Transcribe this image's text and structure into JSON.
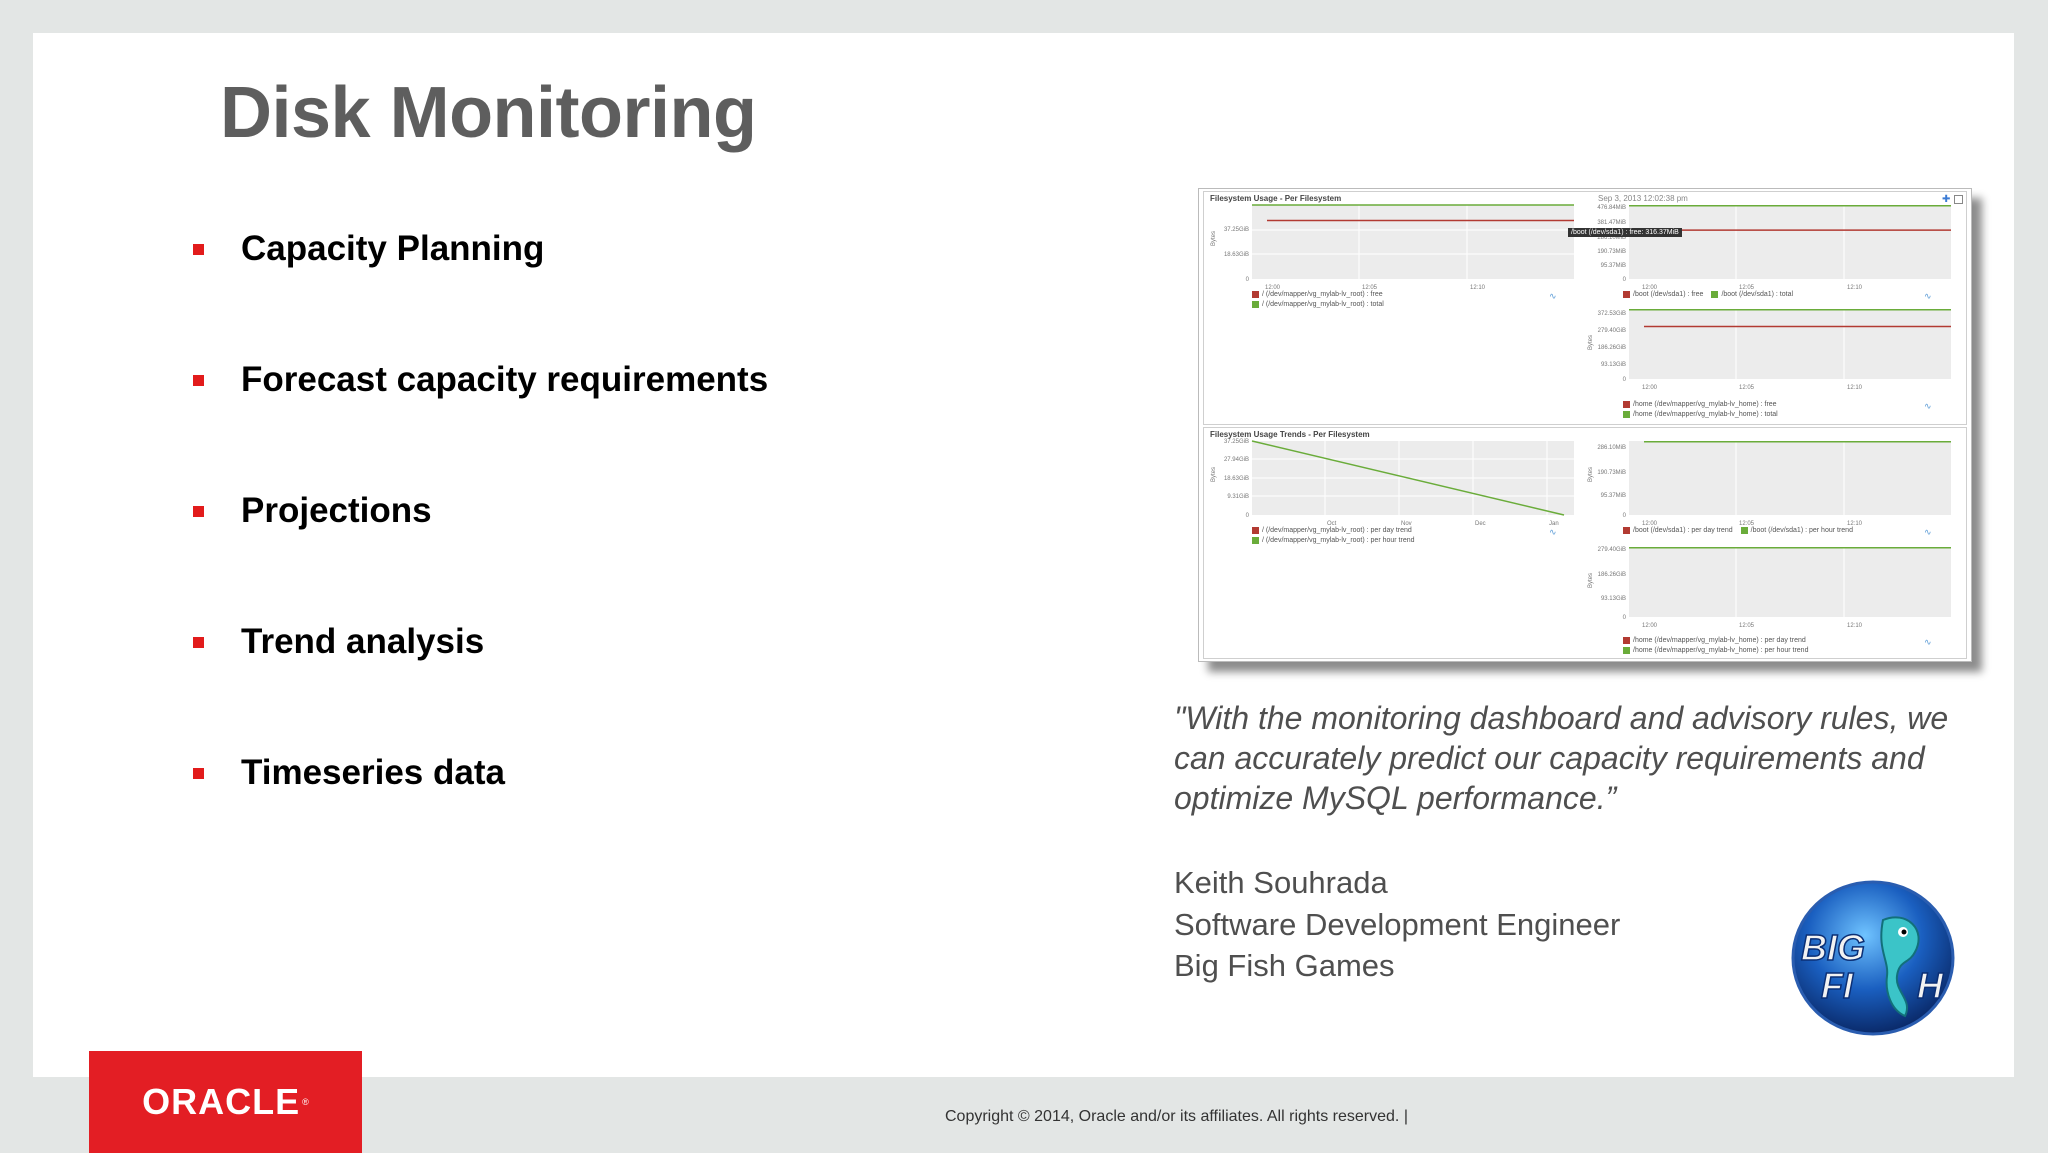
{
  "slide": {
    "title": "Disk Monitoring",
    "bullets": [
      "Capacity Planning",
      "Forecast capacity requirements",
      "Projections",
      "Trend analysis",
      "Timeseries data"
    ],
    "quote": "\"With the monitoring dashboard and advisory rules, we can accurately predict our capacity requirements and optimize MySQL performance.”",
    "attribution": {
      "name": "Keith Souhrada",
      "role": "Software Development Engineer",
      "company": "Big Fish Games"
    },
    "footer": {
      "brand": "ORACLE",
      "copyright": "Copyright © 2014, Oracle and/or its affiliates. All rights reserved.  |"
    },
    "logo_text": "BIG FISH",
    "colors": {
      "bullet": "#e21b1b",
      "oracle_red": "#e31e24",
      "title": "#5e5e5e"
    }
  },
  "dashboard": {
    "usage_panel_title": "Filesystem Usage - Per Filesystem",
    "trends_panel_title": "Filesystem Usage Trends - Per Filesystem",
    "timestamp": "Sep 3, 2013 12:02:38 pm",
    "tooltip": "/boot (/dev/sda1) : free: 316.37MiB",
    "bytes_label": "Bytes"
  },
  "chart_data": [
    {
      "type": "line",
      "ylabel": "Bytes",
      "y_ticks": [
        "37.25GiB",
        "18.63GiB",
        "0"
      ],
      "x_ticks": [
        "12:00",
        "12:05",
        "12:10"
      ],
      "series": [
        {
          "name": "/ (/dev/mapper/vg_mylab-lv_root) : free",
          "color": "#b23a32",
          "level": 0.79
        },
        {
          "name": "/ (/dev/mapper/vg_mylab-lv_root) : total",
          "color": "#6aac3a",
          "level": 1.0
        }
      ]
    },
    {
      "type": "line",
      "ylabel": "Bytes",
      "y_ticks": [
        "476.84MiB",
        "381.47MiB",
        "286.10MiB",
        "190.73MiB",
        "95.37MiB",
        "0"
      ],
      "x_ticks": [
        "12:00",
        "12:05",
        "12:10"
      ],
      "series": [
        {
          "name": "/boot (/dev/sda1) : free",
          "color": "#b23a32",
          "level": 0.66
        },
        {
          "name": "/boot (/dev/sda1) : total",
          "color": "#6aac3a",
          "level": 0.99
        }
      ]
    },
    {
      "type": "line",
      "ylabel": "Bytes",
      "y_ticks": [
        "372.53GiB",
        "279.40GiB",
        "186.26GiB",
        "93.13GiB",
        "0"
      ],
      "x_ticks": [
        "12:00",
        "12:05",
        "12:10"
      ],
      "series": [
        {
          "name": "/home (/dev/mapper/vg_mylab-lv_home) : free",
          "color": "#b23a32",
          "level": 0.75
        },
        {
          "name": "/home (/dev/mapper/vg_mylab-lv_home) : total",
          "color": "#6aac3a",
          "level": 0.99
        }
      ]
    },
    {
      "type": "line",
      "ylabel": "Bytes",
      "y_ticks": [
        "37.25GiB",
        "27.94GiB",
        "18.63GiB",
        "9.31GiB",
        "0"
      ],
      "x_ticks": [
        "Oct",
        "Nov",
        "Dec",
        "Jan"
      ],
      "trend": [
        1.0,
        0.0
      ],
      "series": [
        {
          "name": "/ (/dev/mapper/vg_mylab-lv_root) : per day trend",
          "color": "#b23a32"
        },
        {
          "name": "/ (/dev/mapper/vg_mylab-lv_root) : per hour trend",
          "color": "#6aac3a"
        }
      ]
    },
    {
      "type": "line",
      "ylabel": "Bytes",
      "y_ticks": [
        "286.10MiB",
        "190.73MiB",
        "95.37MiB",
        "0"
      ],
      "x_ticks": [
        "12:00",
        "12:05",
        "12:10"
      ],
      "series": [
        {
          "name": "/boot (/dev/sda1) : per day trend",
          "color": "#b23a32"
        },
        {
          "name": "/boot (/dev/sda1) : per hour trend",
          "color": "#6aac3a",
          "level": 0.99
        }
      ]
    },
    {
      "type": "line",
      "ylabel": "Bytes",
      "y_ticks": [
        "279.40GiB",
        "186.26GiB",
        "93.13GiB",
        "0"
      ],
      "x_ticks": [
        "12:00",
        "12:05",
        "12:10"
      ],
      "series": [
        {
          "name": "/home (/dev/mapper/vg_mylab-lv_home) : per day trend",
          "color": "#b23a32"
        },
        {
          "name": "/home (/dev/mapper/vg_mylab-lv_home) : per hour trend",
          "color": "#6aac3a",
          "level": 0.99
        }
      ]
    }
  ]
}
